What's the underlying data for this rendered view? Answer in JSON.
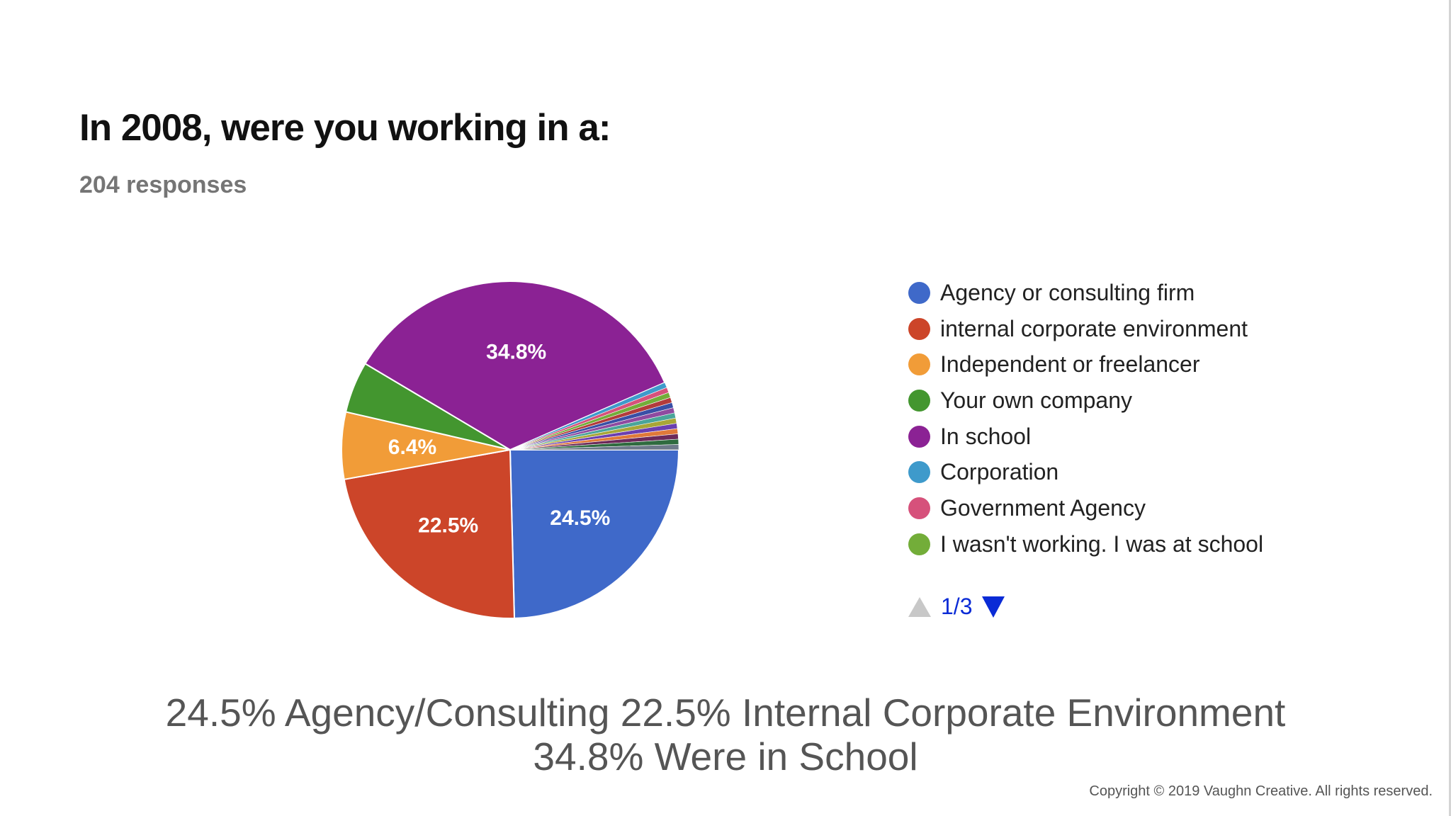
{
  "chart_data": {
    "type": "pie",
    "title": "In 2008, were you working in a:",
    "subtitle": "204 responses",
    "slices": [
      {
        "label": "Agency or consulting firm",
        "value": 24.5,
        "color": "#3f69c9",
        "data_label": "24.5%"
      },
      {
        "label": "internal corporate environment",
        "value": 22.5,
        "color": "#cc4529",
        "data_label": "22.5%"
      },
      {
        "label": "Independent or freelancer",
        "value": 6.4,
        "color": "#f19c38",
        "data_label": "6.4%"
      },
      {
        "label": "Your own company",
        "value": 4.9,
        "color": "#43962f",
        "data_label": ""
      },
      {
        "label": "In school",
        "value": 34.8,
        "color": "#8b2294",
        "data_label": "34.8%"
      },
      {
        "label": "Corporation",
        "value": 0.5,
        "color": "#3e9acb",
        "data_label": ""
      },
      {
        "label": "Government Agency",
        "value": 0.5,
        "color": "#d6517b",
        "data_label": ""
      },
      {
        "label": "I wasn't working. I was at school",
        "value": 0.5,
        "color": "#73ad39",
        "data_label": ""
      },
      {
        "label": "",
        "value": 0.5,
        "color": "#b33b3b",
        "data_label": ""
      },
      {
        "label": "",
        "value": 0.5,
        "color": "#394fa6",
        "data_label": ""
      },
      {
        "label": "",
        "value": 0.5,
        "color": "#8f4aa0",
        "data_label": ""
      },
      {
        "label": "",
        "value": 0.5,
        "color": "#4aa59a",
        "data_label": ""
      },
      {
        "label": "",
        "value": 0.5,
        "color": "#a8a637",
        "data_label": ""
      },
      {
        "label": "",
        "value": 0.5,
        "color": "#6b3fb0",
        "data_label": ""
      },
      {
        "label": "",
        "value": 0.5,
        "color": "#e0793a",
        "data_label": ""
      },
      {
        "label": "",
        "value": 0.5,
        "color": "#6d2a5a",
        "data_label": ""
      },
      {
        "label": "",
        "value": 0.5,
        "color": "#2f6b3f",
        "data_label": ""
      },
      {
        "label": "",
        "value": 0.5,
        "color": "#6e7a8a",
        "data_label": ""
      }
    ],
    "legend_position": "right"
  },
  "legend": {
    "items": [
      {
        "label": "Agency or consulting firm",
        "color": "#3f69c9"
      },
      {
        "label": "internal corporate environment",
        "color": "#cc4529"
      },
      {
        "label": "Independent or freelancer",
        "color": "#f19c38"
      },
      {
        "label": "Your own company",
        "color": "#43962f"
      },
      {
        "label": "In school",
        "color": "#8b2294"
      },
      {
        "label": "Corporation",
        "color": "#3e9acb"
      },
      {
        "label": "Government Agency",
        "color": "#d6517b"
      },
      {
        "label": "I wasn't working. I was at school",
        "color": "#73ad39"
      }
    ],
    "page_text": "1/3"
  },
  "caption": {
    "line1": "24.5% Agency/Consulting 22.5% Internal Corporate Environment",
    "line2": "34.8% Were in School"
  },
  "copyright": "Copyright © 2019 Vaughn Creative. All rights reserved."
}
